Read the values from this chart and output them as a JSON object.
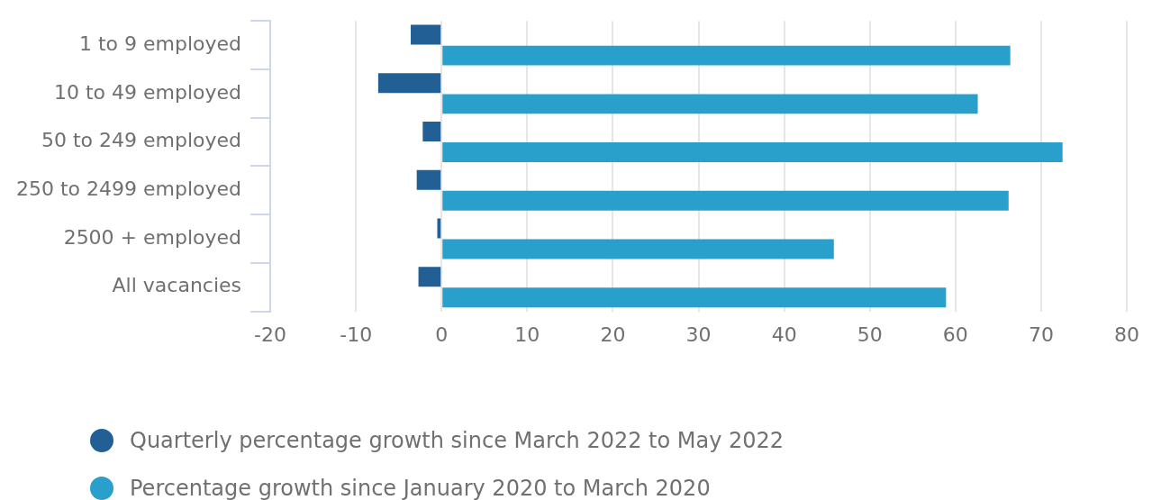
{
  "chart_data": {
    "type": "bar",
    "orientation": "horizontal",
    "categories": [
      "1 to 9 employed",
      "10 to 49 employed",
      "50 to 249 employed",
      "250 to 2499 employed",
      "2500 + employed",
      "All vacancies"
    ],
    "series": [
      {
        "name": "Quarterly percentage growth since March 2022 to May 2022",
        "color": "#215f94",
        "values": [
          -3.6,
          -7.4,
          -2.2,
          -2.9,
          -0.5,
          -2.7
        ]
      },
      {
        "name": "Percentage growth since January 2020 to March 2020",
        "color": "#28a0cb",
        "values": [
          66.4,
          62.6,
          72.5,
          66.2,
          45.8,
          58.9
        ]
      }
    ],
    "xlim": [
      -20,
      80
    ],
    "xticks": [
      -20,
      -10,
      0,
      10,
      20,
      30,
      40,
      50,
      60,
      70,
      80
    ],
    "grid": "x",
    "legend": "bottom"
  }
}
